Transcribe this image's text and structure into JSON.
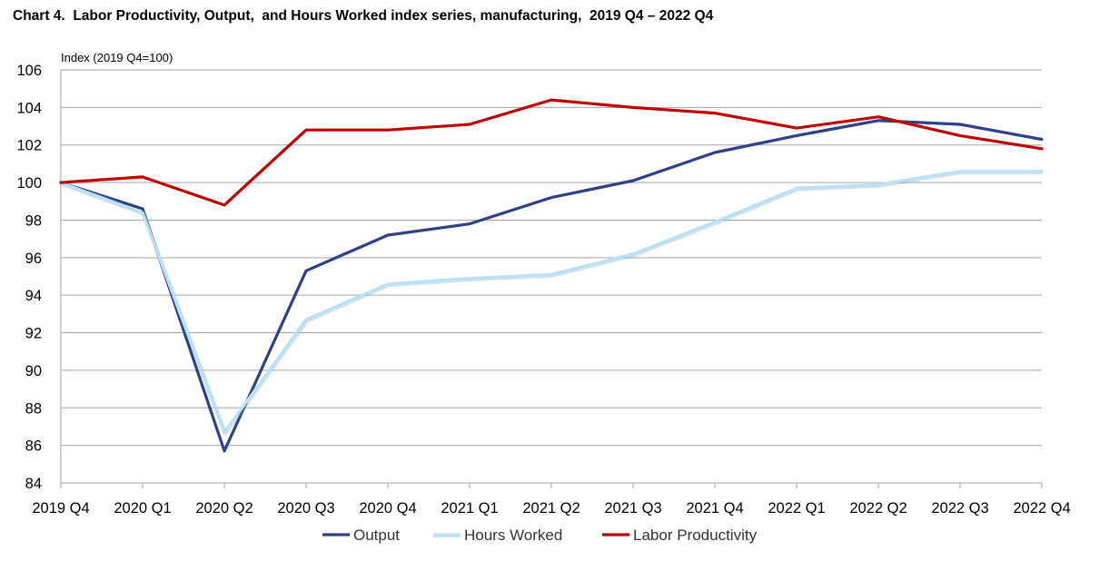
{
  "chart_data": {
    "type": "line",
    "title": "Chart 4.  Labor Productivity, Output,  and Hours Worked index series, manufacturing,  2019 Q4 – 2022 Q4",
    "ylabel": "Index (2019 Q4=100)",
    "xlabel": "",
    "categories": [
      "2019 Q4",
      "2020 Q1",
      "2020 Q2",
      "2020 Q3",
      "2020 Q4",
      "2021 Q1",
      "2021 Q2",
      "2021 Q3",
      "2021 Q4",
      "2022 Q1",
      "2022 Q2",
      "2022 Q3",
      "2022 Q4"
    ],
    "ylim": [
      84,
      106
    ],
    "yticks": [
      84,
      86,
      88,
      90,
      92,
      94,
      96,
      98,
      100,
      102,
      104,
      106
    ],
    "grid": true,
    "legend_position": "bottom",
    "series": [
      {
        "name": "Output",
        "color": "#2E4188",
        "values": [
          100.0,
          98.6,
          85.7,
          95.3,
          97.2,
          97.8,
          99.2,
          100.1,
          101.6,
          102.5,
          103.3,
          103.1,
          102.3
        ]
      },
      {
        "name": "Hours Worked",
        "color": "#B9E1F5",
        "values": [
          100.0,
          98.4,
          86.7,
          92.7,
          94.6,
          94.9,
          95.1,
          96.2,
          97.9,
          99.7,
          99.9,
          100.6,
          100.6
        ]
      },
      {
        "name": "Labor Productivity",
        "color": "#C00000",
        "values": [
          100.0,
          100.3,
          98.8,
          102.8,
          102.8,
          103.1,
          104.4,
          104.0,
          103.7,
          102.9,
          103.5,
          102.5,
          101.8
        ]
      }
    ]
  }
}
